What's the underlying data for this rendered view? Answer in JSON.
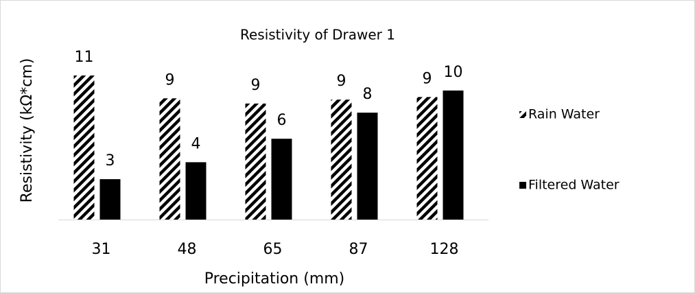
{
  "chart_data": {
    "type": "bar",
    "title": "Resistivity of Drawer 1",
    "x_label": "Precipitation (mm)",
    "y_label": "Resistivity (kΩ*cm)",
    "categories": [
      "31",
      "48",
      "65",
      "87",
      "128"
    ],
    "series": [
      {
        "name": "Rain Water",
        "color": "#000000",
        "pattern": "diagonal-hatch",
        "values": [
          11.05,
          9.3,
          8.9,
          9.2,
          9.4
        ],
        "value_labels": [
          "11",
          "9",
          "9",
          "9",
          "9"
        ]
      },
      {
        "name": "Filtered Water",
        "color": "#000000",
        "values": [
          3.1,
          4.4,
          6.2,
          8.2,
          9.9
        ],
        "value_labels": [
          "3",
          "4",
          "6",
          "8",
          "10"
        ]
      }
    ],
    "legend": "right"
  }
}
